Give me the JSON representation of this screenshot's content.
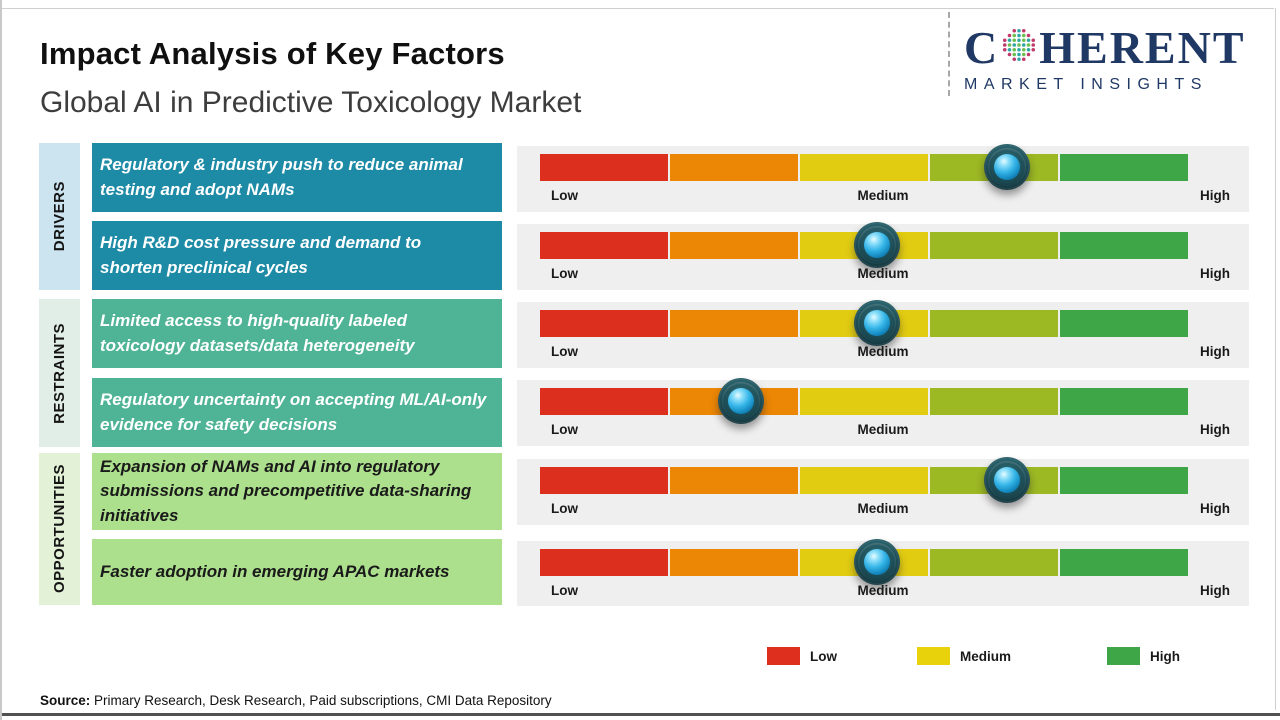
{
  "header": {
    "title": "Impact Analysis of Key Factors",
    "subtitle": "Global AI in Predictive Toxicology Market"
  },
  "brand": {
    "name_start": "C",
    "name_end": "HERENT",
    "tagline": "MARKET INSIGHTS",
    "color": "#1F3864"
  },
  "categories": [
    {
      "label": "DRIVERS",
      "strip_color": "#CBE4F0",
      "box_color": "#1D8AA6",
      "text_color": "#FFFFFF"
    },
    {
      "label": "RESTRAINTS",
      "strip_color": "#E1EEE8",
      "box_color": "#4FB495",
      "text_color": "#FFFFFF"
    },
    {
      "label": "OPPORTUNITIES",
      "strip_color": "#E3F2D7",
      "box_color": "#ADE08D",
      "text_color": "#1A1A1A"
    }
  ],
  "rows": [
    {
      "group": 0,
      "text": "Regulatory & industry push to reduce animal testing and adopt NAMs",
      "marker_pct": 72
    },
    {
      "group": 0,
      "text": "High R&D cost pressure and demand to shorten preclinical cycles",
      "marker_pct": 52
    },
    {
      "group": 1,
      "text": "Limited access to high-quality labeled toxicology datasets/data heterogeneity",
      "marker_pct": 52
    },
    {
      "group": 1,
      "text": "Regulatory uncertainty on accepting ML/AI-only evidence for safety decisions",
      "marker_pct": 31
    },
    {
      "group": 2,
      "text": "Expansion of NAMs and AI into regulatory submissions and precompetitive data-sharing initiatives",
      "marker_pct": 72
    },
    {
      "group": 2,
      "text": "Faster adoption in emerging APAC markets",
      "marker_pct": 52
    }
  ],
  "scale": {
    "low": "Low",
    "medium": "Medium",
    "high": "High"
  },
  "bar": {
    "segment_colors": [
      "#DC2F1E",
      "#EC8605",
      "#E2CC12",
      "#9CB823",
      "#3FA648"
    ],
    "marker_colors": {
      "outer": "#143F48",
      "inner": "#29ABE2"
    }
  },
  "legend": [
    {
      "label": "Low",
      "color": "#DD2E1E"
    },
    {
      "label": "Medium",
      "color": "#E8D20C"
    },
    {
      "label": "High",
      "color": "#3FA648"
    }
  ],
  "source": {
    "label": "Source:",
    "text": " Primary Research, Desk Research, Paid subscriptions, CMI Data Repository"
  },
  "chart_data": {
    "type": "bar",
    "title": "Impact Analysis of Key Factors",
    "subtitle": "Global AI in Predictive Toxicology Market",
    "x_scale": {
      "labels": [
        "Low",
        "Medium",
        "High"
      ],
      "range_pct": [
        0,
        100
      ]
    },
    "legend": [
      "Low",
      "Medium",
      "High"
    ],
    "legend_position": "bottom-right",
    "series": [
      {
        "category": "Drivers",
        "factor": "Regulatory & industry push to reduce animal testing and adopt NAMs",
        "impact_pct": 72,
        "impact_level": "Medium-High"
      },
      {
        "category": "Drivers",
        "factor": "High R&D cost pressure and demand to shorten preclinical cycles",
        "impact_pct": 52,
        "impact_level": "Medium"
      },
      {
        "category": "Restraints",
        "factor": "Limited access to high-quality labeled toxicology datasets/data heterogeneity",
        "impact_pct": 52,
        "impact_level": "Medium"
      },
      {
        "category": "Restraints",
        "factor": "Regulatory uncertainty on accepting ML/AI-only evidence for safety decisions",
        "impact_pct": 31,
        "impact_level": "Low-Medium"
      },
      {
        "category": "Opportunities",
        "factor": "Expansion of NAMs and AI into regulatory submissions and precompetitive data-sharing initiatives",
        "impact_pct": 72,
        "impact_level": "Medium-High"
      },
      {
        "category": "Opportunities",
        "factor": "Faster adoption in emerging APAC markets",
        "impact_pct": 52,
        "impact_level": "Medium"
      }
    ]
  }
}
